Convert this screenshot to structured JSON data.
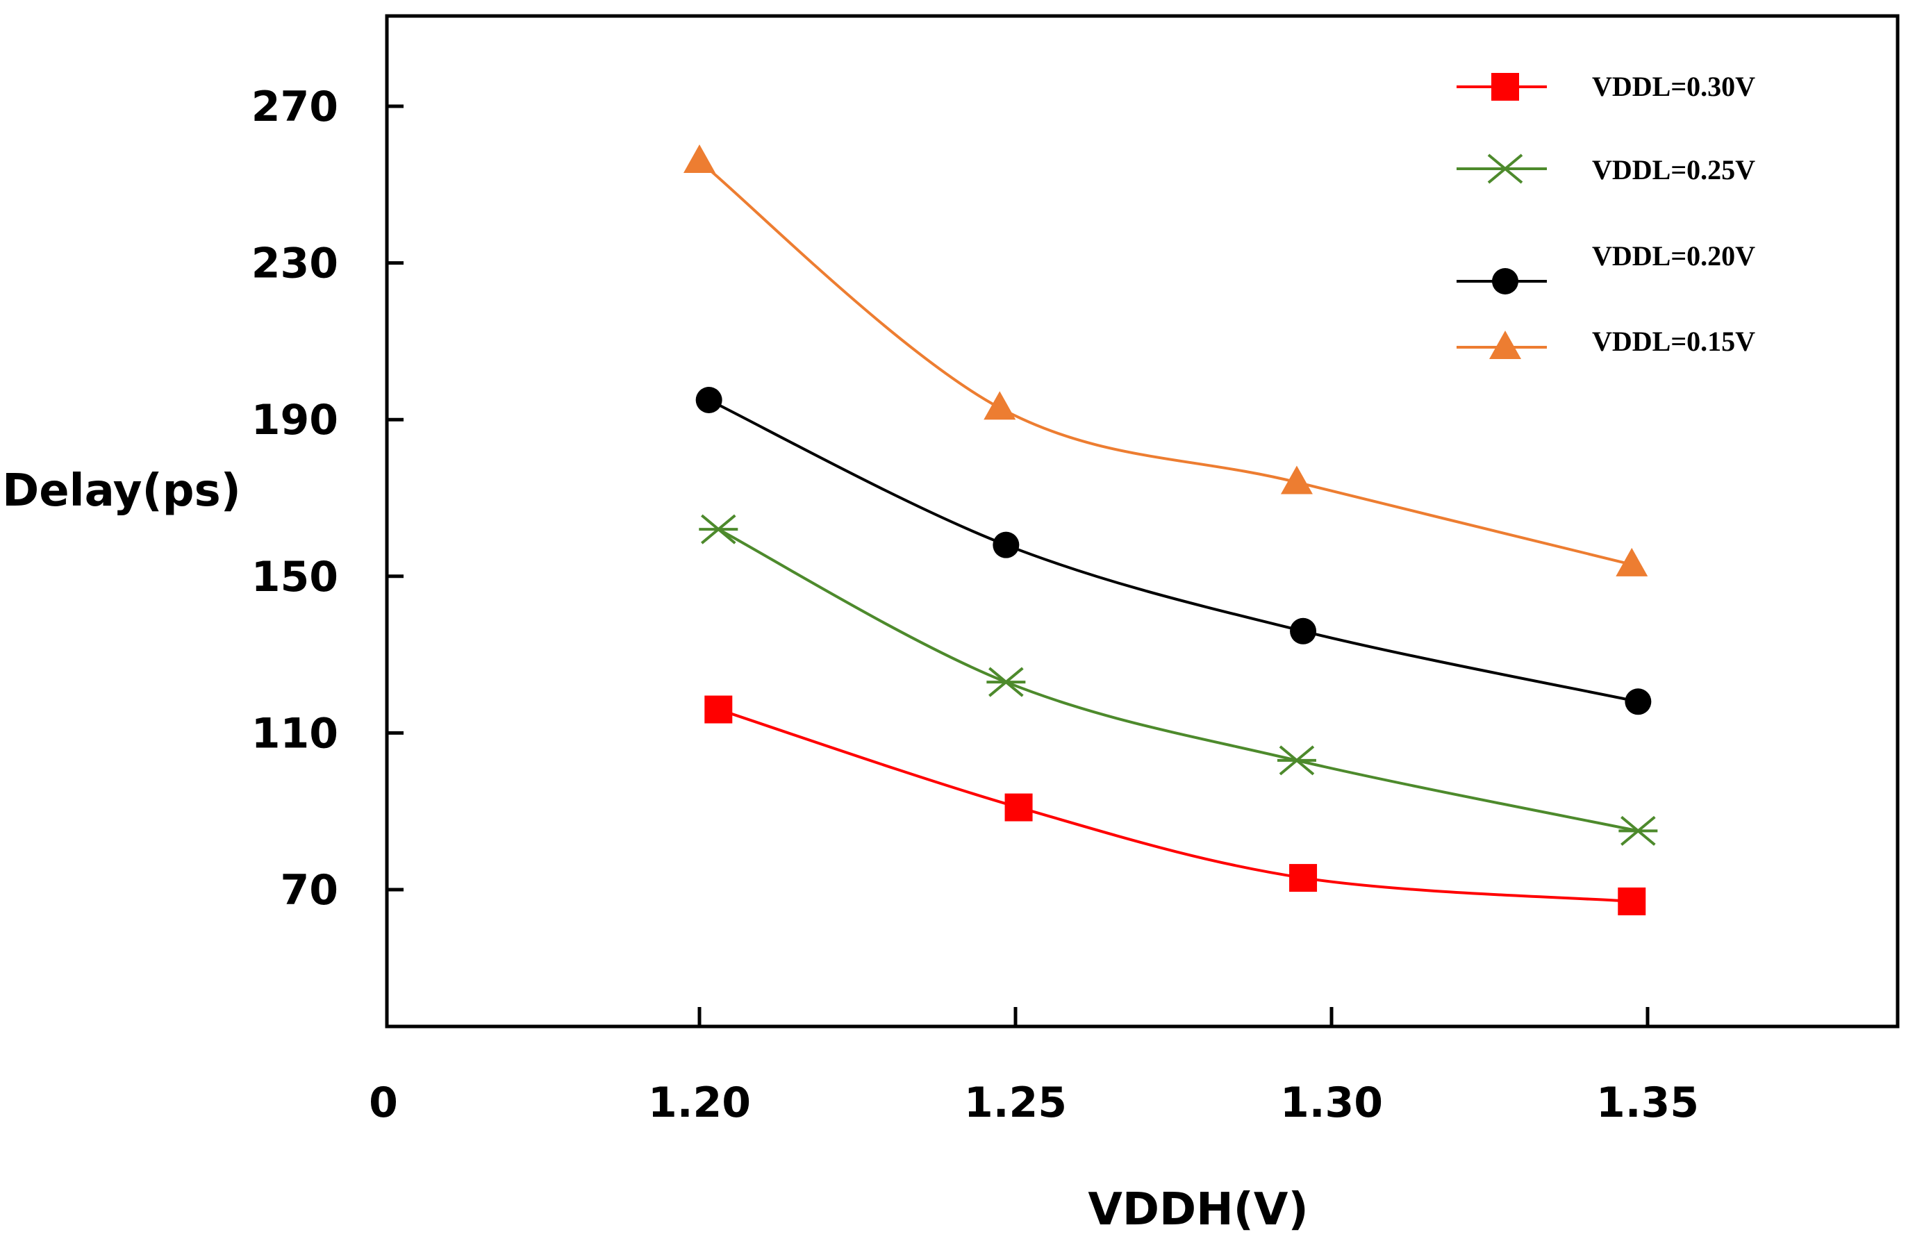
{
  "chart_data": {
    "type": "line",
    "title": "",
    "xlabel": "VDDH(V)",
    "ylabel": "Delay(ps)",
    "x_origin_label": "0",
    "x_ticks": [
      "1.20",
      "1.25",
      "1.30",
      "1.35"
    ],
    "y_ticks": [
      "70",
      "110",
      "150",
      "190",
      "230",
      "270"
    ],
    "xlim": [
      1.15,
      1.39
    ],
    "ylim": [
      36,
      288
    ],
    "grid": false,
    "legend_position": "top-right",
    "series": [
      {
        "name": "VDDL=0.30V",
        "color": "#ff0000",
        "marker": "square",
        "x": [
          1.203,
          1.2505,
          1.2955,
          1.3475
        ],
        "y": [
          116,
          91,
          73,
          67
        ]
      },
      {
        "name": "VDDL=0.25V",
        "color": "#4d8a2c",
        "marker": "x",
        "x": [
          1.203,
          1.2485,
          1.2945,
          1.3485
        ],
        "y": [
          162,
          123,
          103,
          85
        ]
      },
      {
        "name": "VDDL=0.20V",
        "color": "#000000",
        "marker": "circle",
        "x": [
          1.2015,
          1.2485,
          1.2955,
          1.3485
        ],
        "y": [
          195,
          158,
          136,
          118
        ]
      },
      {
        "name": "VDDL=0.15V",
        "color": "#ed7d31",
        "marker": "triangle",
        "x": [
          1.2,
          1.2475,
          1.2945,
          1.3475
        ],
        "y": [
          256,
          193,
          174,
          153
        ]
      }
    ]
  }
}
